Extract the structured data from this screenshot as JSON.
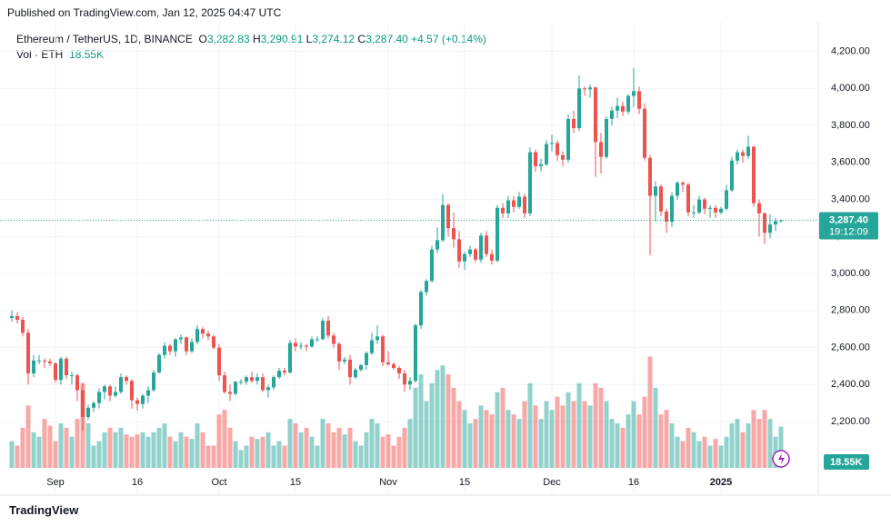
{
  "header": {
    "published": "Published on TradingView.com, Jan 12, 2025 04:47 UTC"
  },
  "legend": {
    "symbol": "Ethereum / TetherUS, 1D, BINANCE",
    "open_key": "O",
    "open": "3,282.83",
    "high_key": "H",
    "high": "3,290.91",
    "low_key": "L",
    "low": "3,274.12",
    "close_key": "C",
    "close": "3,287.40",
    "change": "+4.57 (+0.14%)",
    "volume_key": "Vol · ETH",
    "volume": "18.55K",
    "countdown": "19:12:09"
  },
  "footer": {
    "brand": "TradingView"
  },
  "chart_data": {
    "type": "candlestick",
    "up_color": "#26a69a",
    "down_color": "#ef5350",
    "grid": true,
    "categories": [
      null,
      null,
      null,
      null,
      null,
      null,
      null,
      null,
      "Sep",
      null,
      null,
      null,
      null,
      null,
      null,
      null,
      null,
      null,
      null,
      null,
      null,
      null,
      null,
      "16",
      null,
      null,
      null,
      null,
      null,
      null,
      null,
      null,
      null,
      null,
      null,
      null,
      null,
      null,
      "Oct",
      null,
      null,
      null,
      null,
      null,
      null,
      null,
      null,
      null,
      null,
      null,
      null,
      null,
      "15",
      null,
      null,
      null,
      null,
      null,
      null,
      null,
      null,
      null,
      null,
      null,
      null,
      null,
      null,
      null,
      null,
      "Nov",
      null,
      null,
      null,
      null,
      null,
      null,
      null,
      null,
      null,
      null,
      null,
      null,
      null,
      "15",
      null,
      null,
      null,
      null,
      null,
      null,
      null,
      null,
      null,
      null,
      null,
      null,
      null,
      null,
      null,
      "Dec",
      null,
      null,
      null,
      null,
      null,
      null,
      null,
      null,
      null,
      null,
      null,
      null,
      null,
      null,
      "16",
      null,
      null,
      null,
      null,
      null,
      null,
      null,
      null,
      null,
      null,
      null,
      null,
      null,
      null,
      null,
      "2025",
      null,
      null,
      null,
      null,
      null,
      null,
      null,
      null,
      null,
      null,
      null
    ],
    "ohlc": [
      [
        2760,
        2800,
        2740,
        2770
      ],
      [
        2770,
        2790,
        2730,
        2750
      ],
      [
        2750,
        2765,
        2660,
        2680
      ],
      [
        2680,
        2700,
        2400,
        2460
      ],
      [
        2460,
        2560,
        2440,
        2530
      ],
      [
        2530,
        2560,
        2510,
        2530
      ],
      [
        2530,
        2540,
        2490,
        2525
      ],
      [
        2525,
        2540,
        2500,
        2515
      ],
      [
        2515,
        2520,
        2410,
        2425
      ],
      [
        2425,
        2550,
        2400,
        2540
      ],
      [
        2540,
        2550,
        2430,
        2450
      ],
      [
        2450,
        2470,
        2400,
        2450
      ],
      [
        2450,
        2460,
        2310,
        2370
      ],
      [
        2370,
        2410,
        2150,
        2225
      ],
      [
        2225,
        2290,
        2210,
        2275
      ],
      [
        2275,
        2310,
        2250,
        2300
      ],
      [
        2300,
        2380,
        2270,
        2360
      ],
      [
        2360,
        2400,
        2320,
        2390
      ],
      [
        2390,
        2400,
        2310,
        2340
      ],
      [
        2340,
        2390,
        2330,
        2360
      ],
      [
        2360,
        2460,
        2350,
        2440
      ],
      [
        2440,
        2450,
        2400,
        2420
      ],
      [
        2420,
        2430,
        2270,
        2315
      ],
      [
        2315,
        2330,
        2260,
        2295
      ],
      [
        2295,
        2350,
        2270,
        2340
      ],
      [
        2340,
        2390,
        2300,
        2370
      ],
      [
        2370,
        2480,
        2360,
        2465
      ],
      [
        2465,
        2570,
        2460,
        2560
      ],
      [
        2560,
        2630,
        2540,
        2610
      ],
      [
        2610,
        2620,
        2560,
        2580
      ],
      [
        2580,
        2650,
        2550,
        2645
      ],
      [
        2645,
        2670,
        2620,
        2655
      ],
      [
        2655,
        2660,
        2560,
        2580
      ],
      [
        2580,
        2650,
        2570,
        2630
      ],
      [
        2630,
        2720,
        2620,
        2700
      ],
      [
        2700,
        2710,
        2650,
        2675
      ],
      [
        2675,
        2690,
        2640,
        2660
      ],
      [
        2660,
        2670,
        2590,
        2600
      ],
      [
        2600,
        2620,
        2420,
        2450
      ],
      [
        2450,
        2470,
        2350,
        2360
      ],
      [
        2360,
        2400,
        2310,
        2350
      ],
      [
        2350,
        2420,
        2340,
        2415
      ],
      [
        2415,
        2430,
        2400,
        2415
      ],
      [
        2415,
        2450,
        2400,
        2440
      ],
      [
        2440,
        2470,
        2410,
        2420
      ],
      [
        2420,
        2460,
        2400,
        2440
      ],
      [
        2440,
        2460,
        2360,
        2370
      ],
      [
        2370,
        2400,
        2330,
        2385
      ],
      [
        2385,
        2450,
        2370,
        2440
      ],
      [
        2440,
        2490,
        2430,
        2475
      ],
      [
        2475,
        2490,
        2450,
        2465
      ],
      [
        2465,
        2640,
        2460,
        2625
      ],
      [
        2625,
        2650,
        2580,
        2605
      ],
      [
        2605,
        2630,
        2590,
        2610
      ],
      [
        2610,
        2620,
        2580,
        2605
      ],
      [
        2605,
        2660,
        2600,
        2645
      ],
      [
        2645,
        2660,
        2630,
        2645
      ],
      [
        2645,
        2760,
        2640,
        2745
      ],
      [
        2745,
        2770,
        2650,
        2665
      ],
      [
        2665,
        2680,
        2600,
        2620
      ],
      [
        2620,
        2630,
        2480,
        2525
      ],
      [
        2525,
        2550,
        2510,
        2535
      ],
      [
        2535,
        2560,
        2400,
        2440
      ],
      [
        2440,
        2490,
        2430,
        2480
      ],
      [
        2480,
        2510,
        2470,
        2505
      ],
      [
        2505,
        2580,
        2480,
        2570
      ],
      [
        2570,
        2680,
        2560,
        2640
      ],
      [
        2640,
        2720,
        2620,
        2660
      ],
      [
        2660,
        2670,
        2500,
        2520
      ],
      [
        2520,
        2580,
        2500,
        2510
      ],
      [
        2510,
        2520,
        2480,
        2490
      ],
      [
        2490,
        2500,
        2430,
        2460
      ],
      [
        2460,
        2480,
        2360,
        2400
      ],
      [
        2400,
        2440,
        2370,
        2420
      ],
      [
        2420,
        2730,
        2410,
        2720
      ],
      [
        2720,
        2910,
        2700,
        2900
      ],
      [
        2900,
        2970,
        2880,
        2960
      ],
      [
        2960,
        3150,
        2950,
        3130
      ],
      [
        3130,
        3250,
        3110,
        3180
      ],
      [
        3180,
        3430,
        3170,
        3370
      ],
      [
        3370,
        3380,
        3200,
        3245
      ],
      [
        3245,
        3330,
        3140,
        3185
      ],
      [
        3185,
        3230,
        3030,
        3065
      ],
      [
        3065,
        3120,
        3020,
        3105
      ],
      [
        3105,
        3150,
        3090,
        3130
      ],
      [
        3130,
        3140,
        3060,
        3075
      ],
      [
        3075,
        3220,
        3060,
        3205
      ],
      [
        3205,
        3230,
        3090,
        3105
      ],
      [
        3105,
        3130,
        3050,
        3070
      ],
      [
        3070,
        3370,
        3060,
        3355
      ],
      [
        3355,
        3380,
        3300,
        3325
      ],
      [
        3325,
        3420,
        3300,
        3395
      ],
      [
        3395,
        3420,
        3330,
        3360
      ],
      [
        3360,
        3440,
        3350,
        3415
      ],
      [
        3415,
        3430,
        3300,
        3325
      ],
      [
        3325,
        3680,
        3310,
        3655
      ],
      [
        3655,
        3670,
        3550,
        3580
      ],
      [
        3580,
        3620,
        3550,
        3590
      ],
      [
        3590,
        3720,
        3580,
        3700
      ],
      [
        3700,
        3750,
        3660,
        3705
      ],
      [
        3705,
        3720,
        3610,
        3640
      ],
      [
        3640,
        3660,
        3580,
        3615
      ],
      [
        3615,
        3860,
        3600,
        3835
      ],
      [
        3835,
        3880,
        3760,
        3785
      ],
      [
        3785,
        4070,
        3770,
        4000
      ],
      [
        4000,
        4010,
        3960,
        3995
      ],
      [
        3995,
        4020,
        3950,
        4005
      ],
      [
        4005,
        4010,
        3520,
        3710
      ],
      [
        3710,
        3760,
        3540,
        3630
      ],
      [
        3630,
        3850,
        3620,
        3835
      ],
      [
        3835,
        3900,
        3800,
        3880
      ],
      [
        3880,
        3950,
        3840,
        3905
      ],
      [
        3905,
        3930,
        3850,
        3875
      ],
      [
        3875,
        3970,
        3860,
        3960
      ],
      [
        3960,
        4110,
        3900,
        3985
      ],
      [
        3985,
        4010,
        3860,
        3890
      ],
      [
        3890,
        3920,
        3610,
        3625
      ],
      [
        3625,
        3640,
        3100,
        3420
      ],
      [
        3420,
        3500,
        3280,
        3470
      ],
      [
        3470,
        3480,
        3310,
        3335
      ],
      [
        3335,
        3350,
        3220,
        3280
      ],
      [
        3280,
        3440,
        3250,
        3420
      ],
      [
        3420,
        3500,
        3400,
        3490
      ],
      [
        3490,
        3500,
        3440,
        3480
      ],
      [
        3480,
        3490,
        3310,
        3330
      ],
      [
        3330,
        3370,
        3300,
        3330
      ],
      [
        3330,
        3420,
        3320,
        3400
      ],
      [
        3400,
        3410,
        3320,
        3350
      ],
      [
        3350,
        3370,
        3300,
        3355
      ],
      [
        3355,
        3370,
        3300,
        3330
      ],
      [
        3330,
        3360,
        3320,
        3350
      ],
      [
        3350,
        3480,
        3340,
        3450
      ],
      [
        3450,
        3630,
        3440,
        3610
      ],
      [
        3610,
        3670,
        3590,
        3655
      ],
      [
        3655,
        3670,
        3600,
        3635
      ],
      [
        3635,
        3745,
        3620,
        3685
      ],
      [
        3685,
        3690,
        3360,
        3380
      ],
      [
        3380,
        3400,
        3200,
        3325
      ],
      [
        3325,
        3330,
        3160,
        3220
      ],
      [
        3220,
        3320,
        3190,
        3265
      ],
      [
        3265,
        3300,
        3230,
        3282.83
      ],
      [
        3282.83,
        3290.91,
        3274.12,
        3287.4
      ]
    ],
    "volume": [
      12,
      10,
      18,
      28,
      16,
      14,
      22,
      19,
      12,
      20,
      18,
      14,
      22,
      38,
      20,
      10,
      12,
      16,
      18,
      16,
      18,
      15,
      14,
      15,
      16,
      14,
      16,
      18,
      20,
      14,
      12,
      16,
      14,
      13,
      20,
      16,
      10,
      10,
      24,
      26,
      18,
      12,
      8,
      10,
      14,
      13,
      14,
      16,
      10,
      12,
      10,
      22,
      20,
      16,
      18,
      14,
      10,
      22,
      20,
      16,
      18,
      15,
      18,
      12,
      10,
      16,
      22,
      20,
      14,
      15,
      10,
      14,
      18,
      22,
      36,
      42,
      30,
      38,
      44,
      46,
      42,
      36,
      30,
      26,
      20,
      22,
      28,
      26,
      24,
      34,
      36,
      26,
      24,
      22,
      30,
      38,
      28,
      22,
      30,
      26,
      32,
      28,
      34,
      30,
      38,
      30,
      28,
      38,
      36,
      30,
      22,
      20,
      18,
      24,
      30,
      24,
      32,
      50,
      36,
      24,
      26,
      20,
      14,
      12,
      18,
      16,
      12,
      14,
      10,
      13,
      10,
      14,
      20,
      22,
      16,
      20,
      26,
      22,
      26,
      22,
      14,
      18.55
    ],
    "ylim": [
      1950,
      4355
    ],
    "yticks": [
      {
        "value": 2200,
        "label": "2,200.00"
      },
      {
        "value": 2400,
        "label": "2,400.00"
      },
      {
        "value": 2600,
        "label": "2,600.00"
      },
      {
        "value": 2800,
        "label": "2,800.00"
      },
      {
        "value": 3000,
        "label": "3,000.00"
      },
      {
        "value": 3200,
        "label": "3,200.00"
      },
      {
        "value": 3400,
        "label": "3,400.00"
      },
      {
        "value": 3600,
        "label": "3,600.00"
      },
      {
        "value": 3800,
        "label": "3,800.00"
      },
      {
        "value": 4000,
        "label": "4,000.00"
      },
      {
        "value": 4200,
        "label": "4,200.00"
      }
    ]
  }
}
